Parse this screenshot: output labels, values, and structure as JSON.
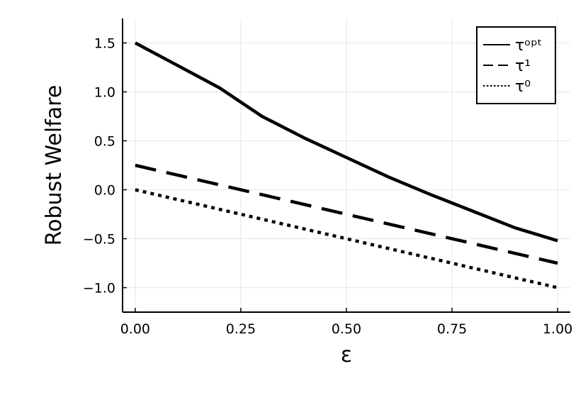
{
  "chart_data": {
    "type": "line",
    "xlabel": "ε",
    "ylabel": "Robust Welfare",
    "xlim": [
      -0.03,
      1.03
    ],
    "ylim": [
      -1.25,
      1.75
    ],
    "xticks": [
      0.0,
      0.25,
      0.5,
      0.75,
      1.0
    ],
    "xtick_labels": [
      "0.00",
      "0.25",
      "0.50",
      "0.75",
      "1.00"
    ],
    "yticks": [
      -1.0,
      -0.5,
      0.0,
      0.5,
      1.0,
      1.5
    ],
    "ytick_labels": [
      "−1.0",
      "−0.5",
      "0.0",
      "0.5",
      "1.0",
      "1.5"
    ],
    "grid": true,
    "legend_position": "top-right",
    "series": [
      {
        "name": "τᵒᵖᵗ",
        "style": "solid",
        "x": [
          0.0,
          0.1,
          0.2,
          0.3,
          0.4,
          0.5,
          0.6,
          0.7,
          0.8,
          0.9,
          1.0
        ],
        "y": [
          1.5,
          1.27,
          1.04,
          0.75,
          0.53,
          0.33,
          0.13,
          -0.05,
          -0.22,
          -0.39,
          -0.52
        ]
      },
      {
        "name": "τ¹",
        "style": "dashed",
        "x": [
          0.0,
          1.0
        ],
        "y": [
          0.25,
          -0.75
        ]
      },
      {
        "name": "τ⁰",
        "style": "dotted",
        "x": [
          0.0,
          1.0
        ],
        "y": [
          0.0,
          -1.0
        ]
      }
    ]
  }
}
